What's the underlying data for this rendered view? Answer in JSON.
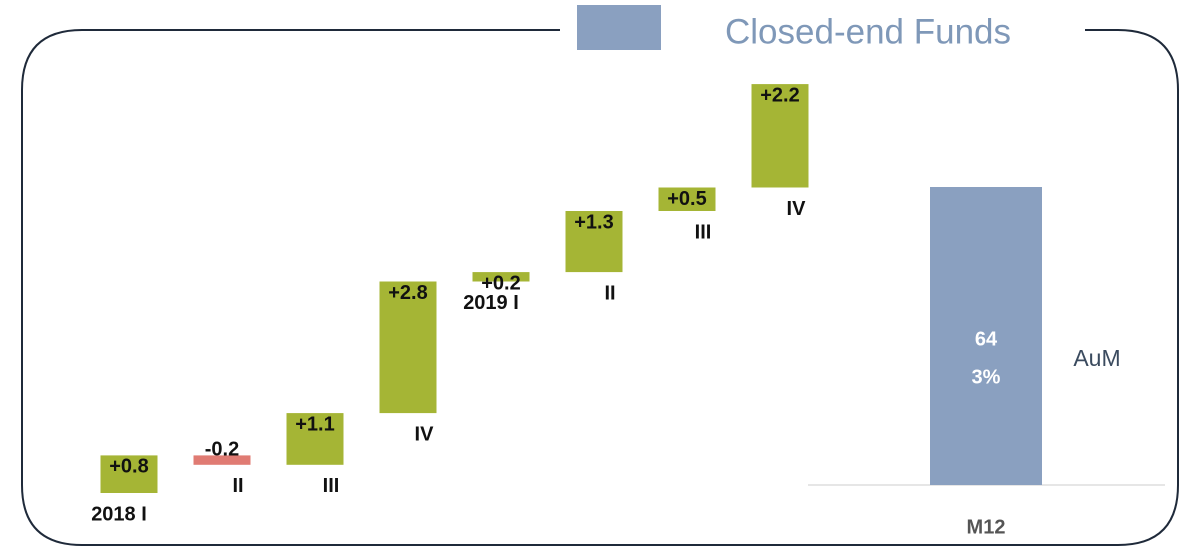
{
  "chart_data": {
    "type": "waterfall",
    "title": "Closed-end Funds",
    "categories": [
      "2018 I",
      "II",
      "III",
      "IV",
      "2019 I",
      "II",
      "III",
      "IV"
    ],
    "values": [
      0.8,
      -0.2,
      1.1,
      2.8,
      0.2,
      1.3,
      0.5,
      2.2
    ],
    "value_labels": [
      "+0.8",
      "-0.2",
      "+1.1",
      "+2.8",
      "+0.2",
      "+1.3",
      "+0.5",
      "+2.2"
    ],
    "up_color": "#a5b535",
    "down_color": "#e07b73",
    "total": {
      "name": "AuM",
      "category": "M12",
      "value": 64,
      "share": 3,
      "share_label": "3%",
      "color": "#8aa0c0"
    }
  }
}
